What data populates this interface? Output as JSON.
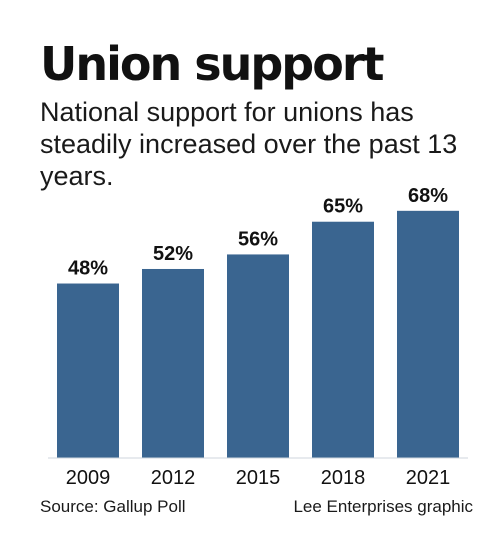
{
  "chart_data": {
    "type": "bar",
    "title": "Union support",
    "subtitle": "National support for unions has steadily increased over the past 13 years.",
    "categories": [
      "2009",
      "2012",
      "2015",
      "2018",
      "2021"
    ],
    "values": [
      48,
      52,
      56,
      65,
      68
    ],
    "data_labels": [
      "48%",
      "52%",
      "56%",
      "65%",
      "68%"
    ],
    "xlabel": "",
    "ylabel": "",
    "ylim": [
      0,
      100
    ],
    "grid": false,
    "bar_color": "#3a6590"
  },
  "footer": {
    "source": "Source: Gallup Poll",
    "credit": "Lee Enterprises graphic"
  }
}
